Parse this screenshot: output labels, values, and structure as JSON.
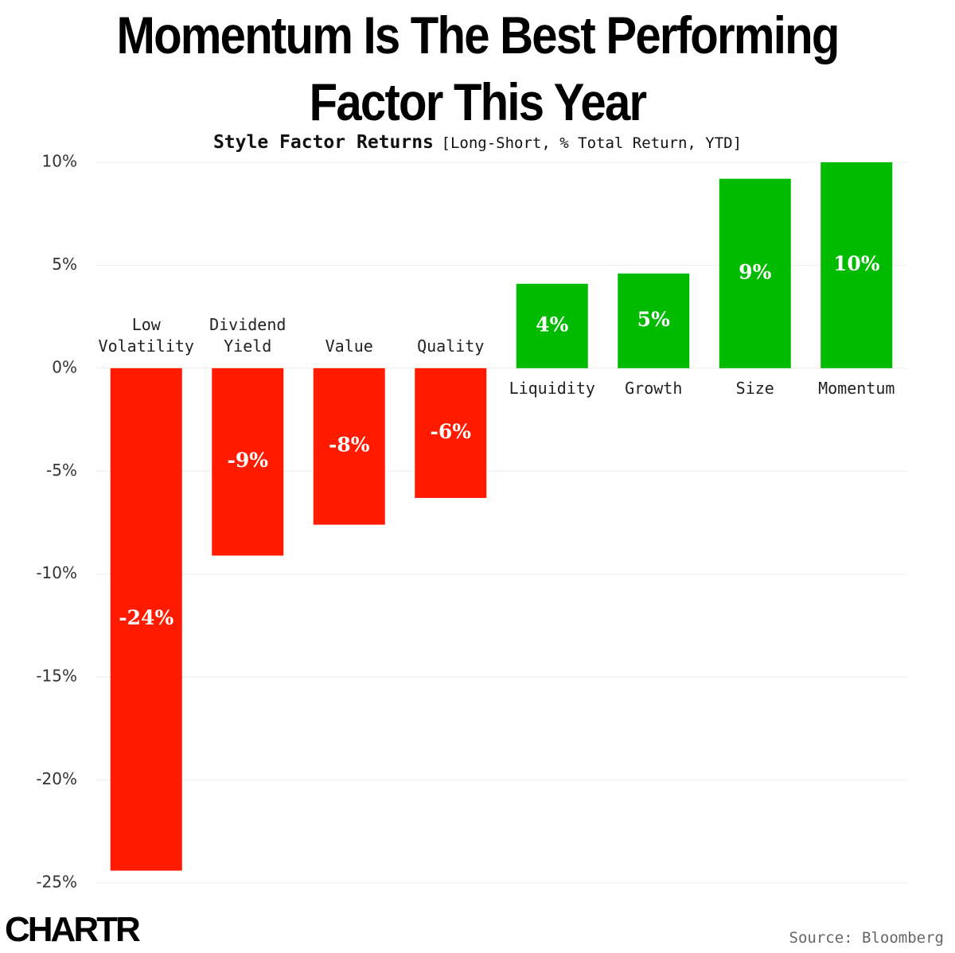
{
  "chart_data": {
    "type": "bar",
    "title": "Momentum Is The Best Performing Factor This Year",
    "subtitle": "Style Factor Returns",
    "subtitle_note": "[Long-Short, % Total Return, YTD]",
    "categories": [
      "Low Volatility",
      "Dividend Yield",
      "Value",
      "Quality",
      "Liquidity",
      "Growth",
      "Size",
      "Momentum"
    ],
    "values": [
      -24.4,
      -9.1,
      -7.6,
      -6.3,
      4.1,
      4.6,
      9.2,
      10.0
    ],
    "value_labels": [
      "-24%",
      "-9%",
      "-8%",
      "-6%",
      "4%",
      "5%",
      "9%",
      "10%"
    ],
    "negative_color": "#ff1a00",
    "positive_color": "#00bb00",
    "ylim": [
      -25,
      10
    ],
    "yticks": [
      {
        "value": -25,
        "label": "-25%"
      },
      {
        "value": -20,
        "label": "-20%"
      },
      {
        "value": -15,
        "label": "-15%"
      },
      {
        "value": -10,
        "label": "-10%"
      },
      {
        "value": -5,
        "label": "-5%"
      },
      {
        "value": 0,
        "label": "0%"
      },
      {
        "value": 5,
        "label": "5%"
      },
      {
        "value": 10,
        "label": "10%"
      }
    ],
    "grid": true,
    "logo": "CHARTR",
    "source": "Source: Bloomberg"
  }
}
